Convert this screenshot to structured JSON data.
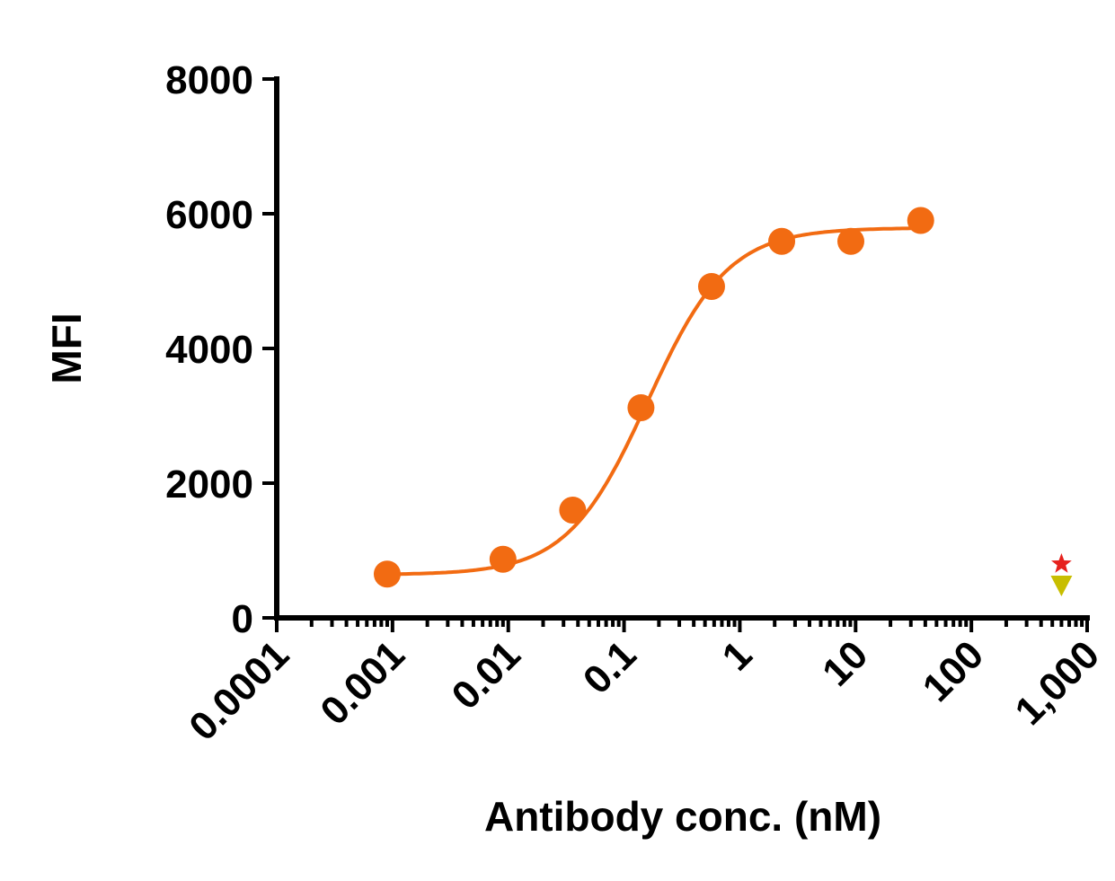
{
  "chart_data": {
    "type": "scatter",
    "title": "",
    "xlabel": "Antibody conc. (nM)",
    "ylabel": "MFI",
    "xscale": "log",
    "xlim": [
      0.0001,
      1000
    ],
    "ylim": [
      0,
      8000
    ],
    "yticks": [
      "0",
      "2000",
      "4000",
      "6000",
      "8000"
    ],
    "xticks": [
      "0.0001",
      "0.001",
      "0.01",
      "0.1",
      "1",
      "10",
      "100",
      "1,000"
    ],
    "grid": false,
    "legend": "none",
    "series": [
      {
        "marker": "circle",
        "color": "#f26b12",
        "fit": "four-parameter logistic curve",
        "x": [
          0.0009,
          0.009,
          0.036,
          0.14,
          0.57,
          2.3,
          9.1,
          36.5
        ],
        "y": [
          650,
          870,
          1600,
          3120,
          4920,
          5590,
          5590,
          5900
        ]
      },
      {
        "marker": "star",
        "color": "#e6211d",
        "x": [
          600
        ],
        "y": [
          800
        ]
      },
      {
        "marker": "triangle-down",
        "color": "#c8be00",
        "x": [
          600
        ],
        "y": [
          480
        ]
      }
    ]
  }
}
